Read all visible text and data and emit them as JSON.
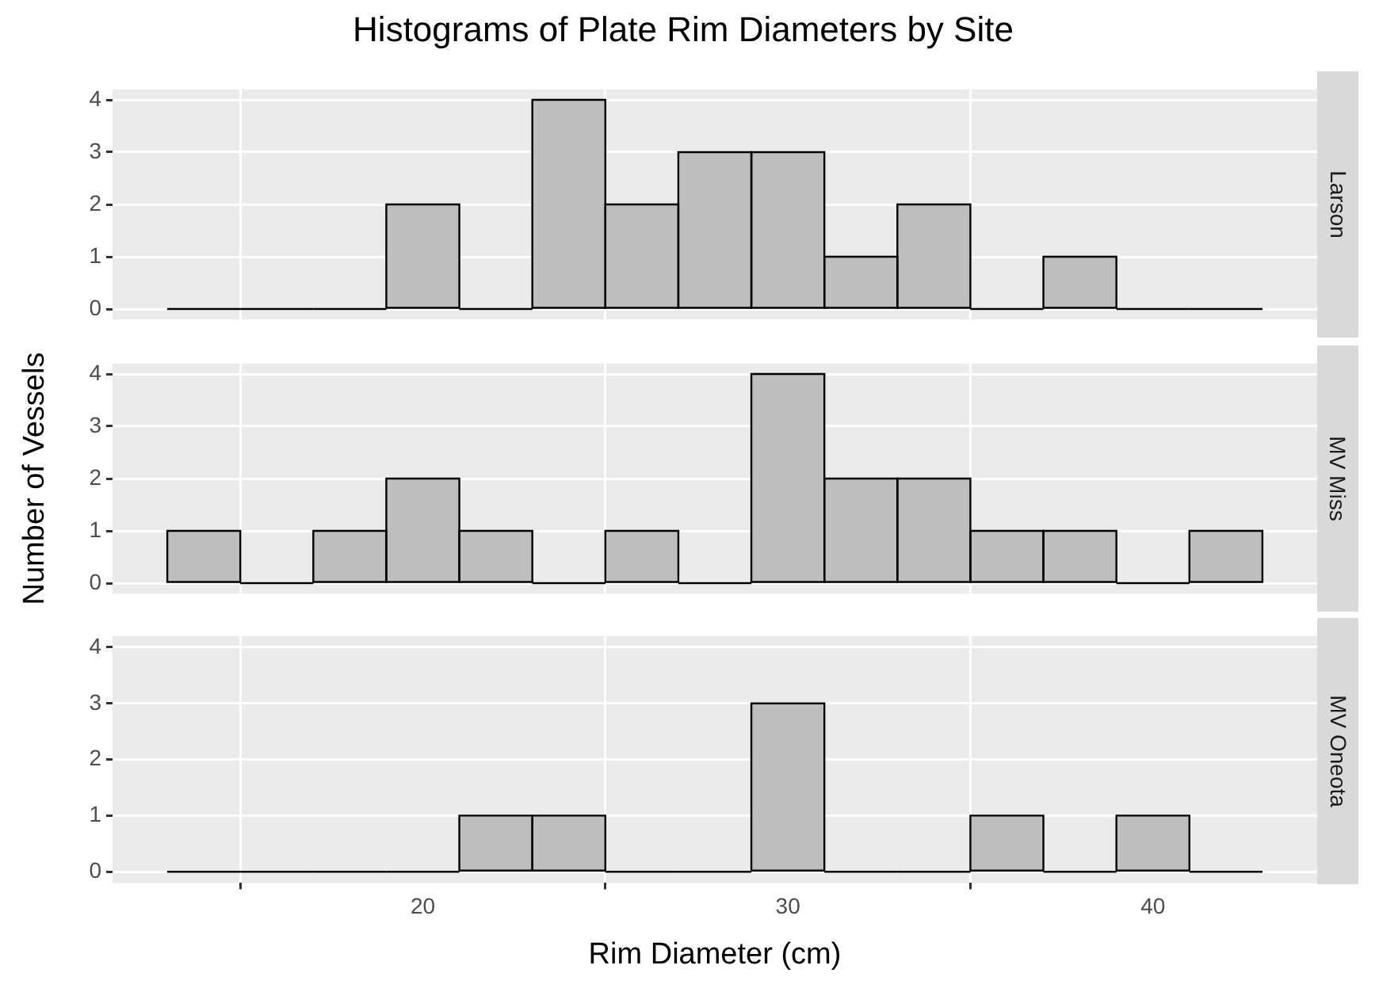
{
  "chart_data": [
    {
      "type": "histogram",
      "title": "Histograms of Plate Rim Diameters by Site",
      "subtitle": "Larson",
      "bins": [
        13,
        15,
        17,
        19,
        21,
        23,
        25,
        27,
        29,
        31,
        33,
        35,
        37,
        39,
        41,
        43
      ],
      "values": [
        0,
        0,
        0,
        2,
        0,
        4,
        2,
        3,
        3,
        1,
        2,
        0,
        1,
        0,
        0
      ],
      "color": "#bebebe",
      "xlim": [
        11.5,
        44.5
      ],
      "xticks": [
        20,
        30,
        40
      ],
      "ylim": [
        -0.2,
        4.2
      ],
      "yticks": [
        0,
        1,
        2,
        3,
        4
      ],
      "grid": true,
      "tick_labels": "y"
    },
    {
      "type": "histogram",
      "subtitle": "MV Miss",
      "ylabel": "Number of Vessels",
      "bins": [
        13,
        15,
        17,
        19,
        21,
        23,
        25,
        27,
        29,
        31,
        33,
        35,
        37,
        39,
        41,
        43
      ],
      "values": [
        1,
        0,
        1,
        2,
        1,
        0,
        1,
        0,
        4,
        2,
        2,
        1,
        1,
        0,
        1
      ],
      "color": "#bebebe",
      "xlim": [
        11.5,
        44.5
      ],
      "xticks": [
        20,
        30,
        40
      ],
      "ylim": [
        -0.2,
        4.2
      ],
      "yticks": [
        0,
        1,
        2,
        3,
        4
      ],
      "grid": true,
      "tick_labels": "y"
    },
    {
      "type": "histogram",
      "subtitle": "MV Oneota",
      "xlabel": "Rim Diameter (cm)",
      "bins": [
        13,
        15,
        17,
        19,
        21,
        23,
        25,
        27,
        29,
        31,
        33,
        35,
        37,
        39,
        41,
        43
      ],
      "values": [
        0,
        0,
        0,
        0,
        1,
        1,
        0,
        0,
        3,
        0,
        0,
        1,
        0,
        1,
        0
      ],
      "color": "#bebebe",
      "xlim": [
        11.5,
        44.5
      ],
      "xticks": [
        20,
        30,
        40
      ],
      "ylim": [
        -0.2,
        4.2
      ],
      "yticks": [
        0,
        1,
        2,
        3,
        4
      ],
      "grid": true
    }
  ]
}
